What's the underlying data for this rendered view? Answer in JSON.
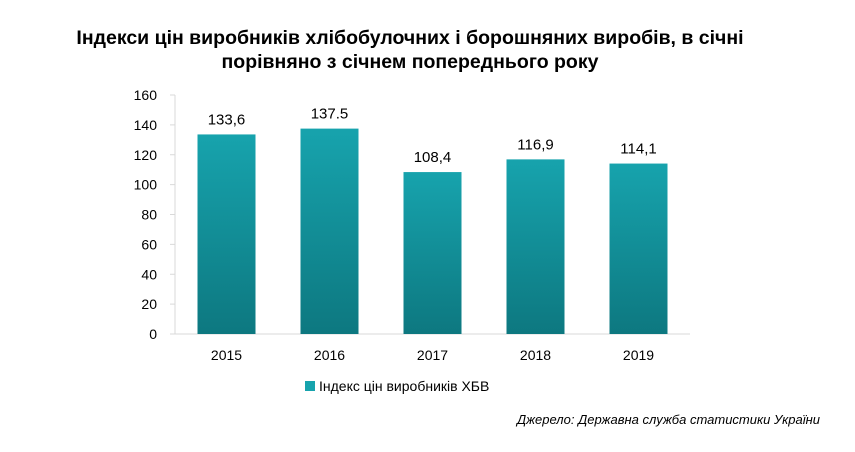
{
  "title_lines": [
    "Індекси цін виробників хлібобулочних і борошняних виробів, в січні",
    "порівняно з січнем попереднього року"
  ],
  "source": "Джерело: Державна служба статистики України",
  "colors": {
    "bar_top": "#17a3ad",
    "bar_bottom": "#0d7880",
    "axis": "#d9d9d9",
    "text": "#000000"
  },
  "chart_data": {
    "type": "bar",
    "categories": [
      "2015",
      "2016",
      "2017",
      "2018",
      "2019"
    ],
    "series": [
      {
        "name": "Індекс цін виробників ХБВ",
        "values": [
          133.6,
          137.5,
          108.4,
          116.9,
          114.1
        ],
        "labels": [
          "133,6",
          "137.5",
          "108,4",
          "116,9",
          "114,1"
        ]
      }
    ],
    "title": "Індекси цін виробників хлібобулочних і борошняних виробів, в січні порівняно з січнем попереднього року",
    "xlabel": "",
    "ylabel": "",
    "ylim": [
      0,
      160
    ],
    "yticks": [
      0,
      20,
      40,
      60,
      80,
      100,
      120,
      140,
      160
    ],
    "grid": false,
    "legend_position": "bottom"
  }
}
